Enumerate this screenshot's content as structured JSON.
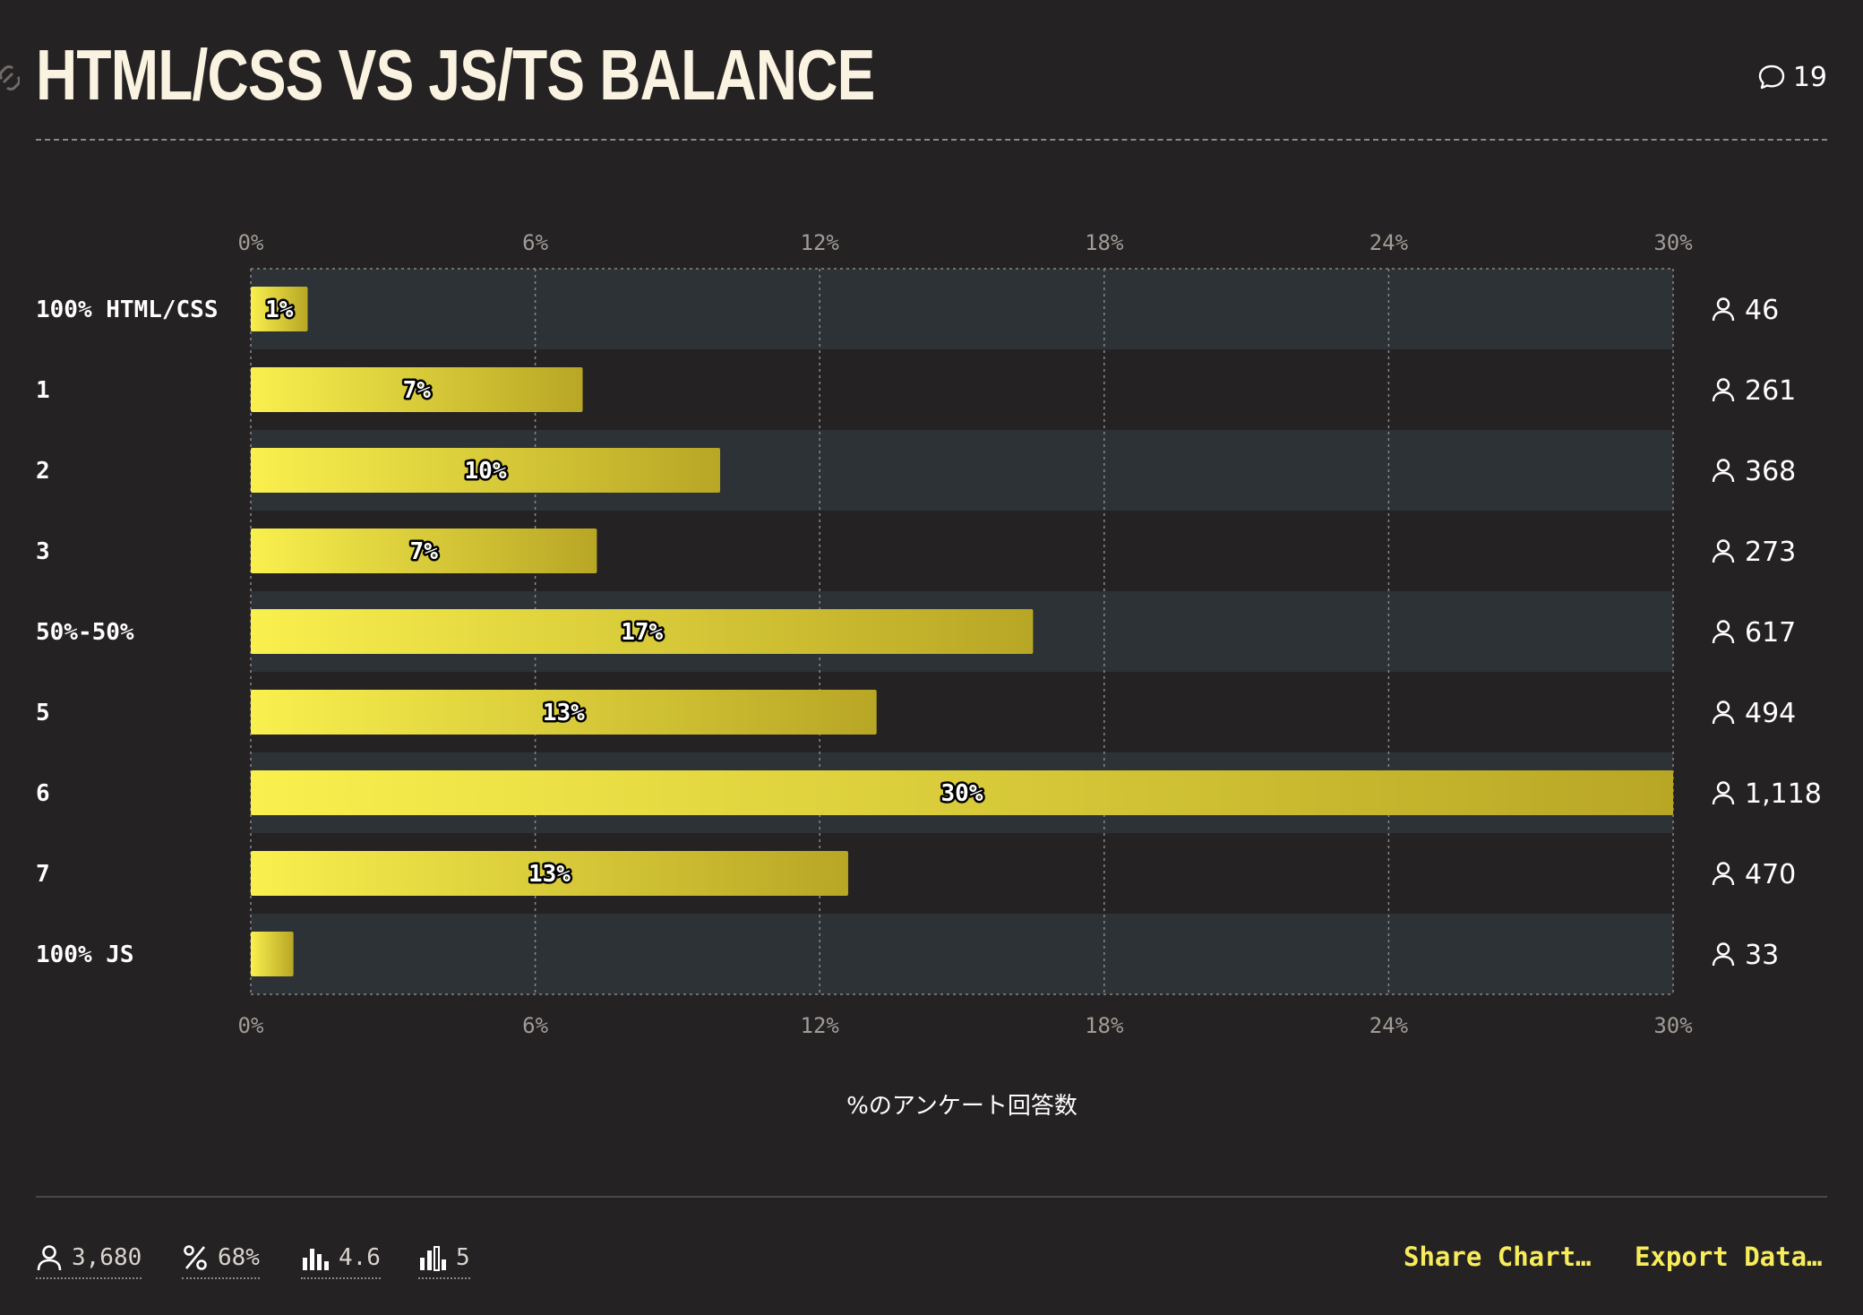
{
  "header": {
    "title": "HTML/CSS VS JS/TS BALANCE",
    "comment_count": "19"
  },
  "chart_data": {
    "type": "bar",
    "orientation": "horizontal",
    "categories": [
      "100% HTML/CSS",
      "1",
      "2",
      "3",
      "50%-50%",
      "5",
      "6",
      "7",
      "100% JS"
    ],
    "values": [
      1.2,
      7.0,
      9.9,
      7.3,
      16.5,
      13.2,
      30.0,
      12.6,
      0.9
    ],
    "value_labels": [
      "1%",
      "7%",
      "10%",
      "7%",
      "17%",
      "13%",
      "30%",
      "13%",
      ""
    ],
    "counts": [
      "46",
      "261",
      "368",
      "273",
      "617",
      "494",
      "1,118",
      "470",
      "33"
    ],
    "xlim": [
      0,
      30
    ],
    "x_ticks": [
      0,
      6,
      12,
      18,
      24,
      30
    ],
    "x_tick_labels": [
      "0%",
      "6%",
      "12%",
      "18%",
      "24%",
      "30%"
    ],
    "xlabel": "%のアンケート回答数",
    "grid": true,
    "colors": {
      "bar_start": "#f9f04e",
      "bar_end": "#b8a625",
      "band": "#2c3235"
    }
  },
  "footer": {
    "stats": [
      {
        "icon": "user-icon",
        "value": "3,680"
      },
      {
        "icon": "percent-icon",
        "value": "68%"
      },
      {
        "icon": "average-bars-icon",
        "value": "4.6"
      },
      {
        "icon": "median-bars-icon",
        "value": "5"
      }
    ],
    "share_label": "Share Chart…",
    "export_label": "Export Data…"
  }
}
